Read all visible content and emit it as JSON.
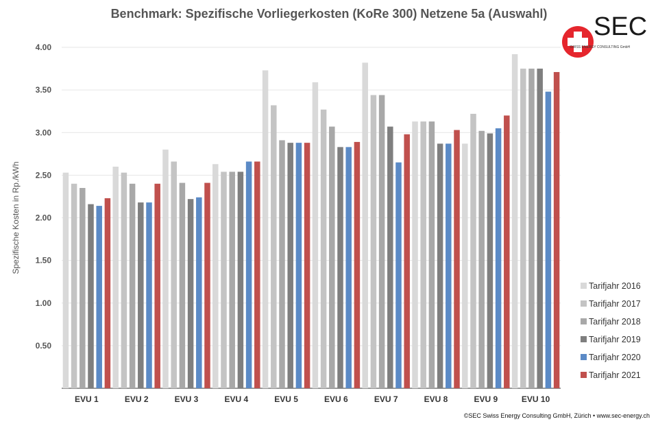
{
  "page": {
    "title": "Benchmark: Spezifische Vorliegerkosten (KoRe 300) Netzene 5a (Auswahl)",
    "footer": "©SEC Swiss Energy Consulting GmbH, Zürich • www.sec-energy.ch",
    "logo_text": "SEC",
    "logo_subtext": "SWISS ENERGY CONSULTING GmbH"
  },
  "chart_data": {
    "type": "bar",
    "title": "Benchmark: Spezifische Vorliegerkosten (KoRe 300) Netzene 5a (Auswahl)",
    "xlabel": "",
    "ylabel": "Spezifische Kosten in Rp./kWh",
    "ylim": [
      0,
      4.0
    ],
    "yticks": [
      "0.50",
      "1.00",
      "1.50",
      "2.00",
      "2.50",
      "3.00",
      "3.50",
      "4.00"
    ],
    "grid": true,
    "legend_position": "bottom-right",
    "categories": [
      "EVU 1",
      "EVU 2",
      "EVU 3",
      "EVU 4",
      "EVU 5",
      "EVU 6",
      "EVU 7",
      "EVU 8",
      "EVU 9",
      "EVU 10"
    ],
    "series": [
      {
        "name": "Tarifjahr 2016",
        "color": "#d9d9d9",
        "values": [
          2.53,
          2.6,
          2.8,
          2.63,
          3.73,
          3.59,
          3.82,
          3.13,
          2.87,
          3.92
        ]
      },
      {
        "name": "Tarifjahr 2017",
        "color": "#c4c4c4",
        "values": [
          2.4,
          2.53,
          2.66,
          2.54,
          3.32,
          3.27,
          3.44,
          3.13,
          3.22,
          3.75
        ]
      },
      {
        "name": "Tarifjahr 2018",
        "color": "#a8a8a8",
        "values": [
          2.35,
          2.4,
          2.41,
          2.54,
          2.91,
          3.07,
          3.44,
          3.13,
          3.02,
          3.75
        ]
      },
      {
        "name": "Tarifjahr 2019",
        "color": "#7f7f7f",
        "values": [
          2.16,
          2.18,
          2.22,
          2.54,
          2.88,
          2.83,
          3.07,
          2.87,
          2.99,
          3.75
        ]
      },
      {
        "name": "Tarifjahr 2020",
        "color": "#5b8ac6",
        "values": [
          2.14,
          2.18,
          2.24,
          2.66,
          2.88,
          2.83,
          2.65,
          2.87,
          3.05,
          3.48
        ]
      },
      {
        "name": "Tarifjahr 2021",
        "color": "#c0504d",
        "values": [
          2.23,
          2.4,
          2.41,
          2.66,
          2.88,
          2.89,
          2.98,
          3.03,
          3.2,
          3.71
        ]
      }
    ]
  }
}
